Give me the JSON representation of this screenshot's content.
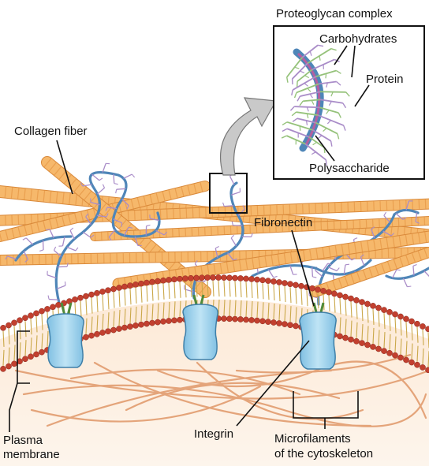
{
  "labels": {
    "proteoglycan_complex": "Proteoglycan complex",
    "carbohydrates": "Carbohydrates",
    "protein": "Protein",
    "polysaccharide": "Polysaccharide",
    "collagen_fiber": "Collagen fiber",
    "fibronectin": "Fibronectin",
    "plasma_membrane_line1": "Plasma",
    "plasma_membrane_line2": "membrane",
    "integrin": "Integrin",
    "microfilaments_line1": "Microfilaments",
    "microfilaments_line2": "of the cytoskeleton"
  },
  "colors": {
    "collagen": "#f6b86b",
    "collagen_band": "#e08c3a",
    "proteoglycan_core": "#4f86b8",
    "carbohydrate_branch": "#a98cc8",
    "carbohydrate_green": "#95c27a",
    "protein_core": "#b45fa0",
    "lipid_head": "#c2402f",
    "lipid_tail": "#caa84a",
    "integrin": "#9fd2ec",
    "cytoplasm": "#fbe7d6",
    "microfilament": "#e4a47a",
    "arrow": "#c8c8c8"
  }
}
